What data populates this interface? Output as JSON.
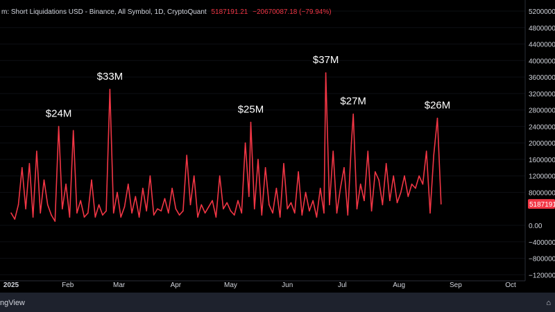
{
  "legend": {
    "title": "m: Short Liquidations USD - Binance, All Symbol, 1D, CryptoQuant",
    "value": "5187191.21",
    "change": "−20670087.18 (−79.94%)"
  },
  "branding": {
    "text": "ngView",
    "corner": "⌂"
  },
  "colors": {
    "background": "#000000",
    "line": "#f23645",
    "axis_text": "#d1d4dc",
    "grid": "#2a2e39",
    "footer": "#1e222d"
  },
  "chart_data": {
    "type": "line",
    "title": "",
    "xlabel": "",
    "ylabel": "",
    "ylim": [
      -12000000,
      52000000
    ],
    "x_start": "2025-01-01",
    "x_end": "2025-10-08",
    "y_ticks": [
      {
        "value": 52000000,
        "label": "52000000"
      },
      {
        "value": 48000000,
        "label": "48000000"
      },
      {
        "value": 44000000,
        "label": "44000000"
      },
      {
        "value": 40000000,
        "label": "40000000"
      },
      {
        "value": 36000000,
        "label": "36000000"
      },
      {
        "value": 32000000,
        "label": "32000000"
      },
      {
        "value": 28000000,
        "label": "28000000"
      },
      {
        "value": 24000000,
        "label": "24000000"
      },
      {
        "value": 20000000,
        "label": "20000000"
      },
      {
        "value": 16000000,
        "label": "16000000"
      },
      {
        "value": 12000000,
        "label": "12000000"
      },
      {
        "value": 8000000,
        "label": "8000000"
      },
      {
        "value": 0,
        "label": "0.00"
      },
      {
        "value": -4000000,
        "label": "−4000000"
      },
      {
        "value": -8000000,
        "label": "−8000000"
      },
      {
        "value": -12000000,
        "label": "−12000000"
      }
    ],
    "x_ticks": [
      {
        "date": "2025-01-01",
        "label": "2025"
      },
      {
        "date": "2025-02-01",
        "label": "Feb"
      },
      {
        "date": "2025-03-01",
        "label": "Mar"
      },
      {
        "date": "2025-04-01",
        "label": "Apr"
      },
      {
        "date": "2025-05-01",
        "label": "May"
      },
      {
        "date": "2025-06-01",
        "label": "Jun"
      },
      {
        "date": "2025-07-01",
        "label": "Jul"
      },
      {
        "date": "2025-08-01",
        "label": "Aug"
      },
      {
        "date": "2025-09-01",
        "label": "Sep"
      },
      {
        "date": "2025-10-01",
        "label": "Oct"
      }
    ],
    "last_value": {
      "value": 5187191,
      "label": "5187191"
    },
    "annotations": [
      {
        "date": "2025-01-27",
        "value": 24000000,
        "label": "$24M"
      },
      {
        "date": "2025-02-24",
        "value": 33000000,
        "label": "$33M"
      },
      {
        "date": "2025-05-12",
        "value": 25000000,
        "label": "$25M"
      },
      {
        "date": "2025-06-22",
        "value": 37000000,
        "label": "$37M"
      },
      {
        "date": "2025-07-07",
        "value": 27000000,
        "label": "$27M"
      },
      {
        "date": "2025-08-22",
        "value": 26000000,
        "label": "$26M"
      }
    ],
    "series": [
      {
        "name": "Short Liquidations USD",
        "x": [
          "2025-01-01",
          "2025-01-03",
          "2025-01-05",
          "2025-01-07",
          "2025-01-09",
          "2025-01-11",
          "2025-01-13",
          "2025-01-15",
          "2025-01-17",
          "2025-01-19",
          "2025-01-21",
          "2025-01-23",
          "2025-01-25",
          "2025-01-27",
          "2025-01-29",
          "2025-01-31",
          "2025-02-02",
          "2025-02-04",
          "2025-02-06",
          "2025-02-08",
          "2025-02-10",
          "2025-02-12",
          "2025-02-14",
          "2025-02-16",
          "2025-02-18",
          "2025-02-20",
          "2025-02-22",
          "2025-02-24",
          "2025-02-26",
          "2025-02-28",
          "2025-03-02",
          "2025-03-04",
          "2025-03-06",
          "2025-03-08",
          "2025-03-10",
          "2025-03-12",
          "2025-03-14",
          "2025-03-16",
          "2025-03-18",
          "2025-03-20",
          "2025-03-22",
          "2025-03-24",
          "2025-03-26",
          "2025-03-28",
          "2025-03-30",
          "2025-04-01",
          "2025-04-03",
          "2025-04-05",
          "2025-04-07",
          "2025-04-09",
          "2025-04-11",
          "2025-04-13",
          "2025-04-15",
          "2025-04-17",
          "2025-04-19",
          "2025-04-21",
          "2025-04-23",
          "2025-04-25",
          "2025-04-27",
          "2025-04-29",
          "2025-05-01",
          "2025-05-03",
          "2025-05-05",
          "2025-05-07",
          "2025-05-09",
          "2025-05-11",
          "2025-05-12",
          "2025-05-14",
          "2025-05-16",
          "2025-05-18",
          "2025-05-20",
          "2025-05-22",
          "2025-05-24",
          "2025-05-26",
          "2025-05-28",
          "2025-05-30",
          "2025-06-01",
          "2025-06-03",
          "2025-06-05",
          "2025-06-07",
          "2025-06-09",
          "2025-06-11",
          "2025-06-13",
          "2025-06-15",
          "2025-06-17",
          "2025-06-19",
          "2025-06-21",
          "2025-06-22",
          "2025-06-24",
          "2025-06-26",
          "2025-06-28",
          "2025-06-30",
          "2025-07-02",
          "2025-07-04",
          "2025-07-06",
          "2025-07-07",
          "2025-07-09",
          "2025-07-11",
          "2025-07-13",
          "2025-07-15",
          "2025-07-17",
          "2025-07-19",
          "2025-07-21",
          "2025-07-23",
          "2025-07-25",
          "2025-07-27",
          "2025-07-29",
          "2025-07-31",
          "2025-08-02",
          "2025-08-04",
          "2025-08-06",
          "2025-08-08",
          "2025-08-10",
          "2025-08-12",
          "2025-08-14",
          "2025-08-16",
          "2025-08-18",
          "2025-08-20",
          "2025-08-22",
          "2025-08-24"
        ],
        "values": [
          3000000,
          1500000,
          5000000,
          14000000,
          4000000,
          15000000,
          2000000,
          18000000,
          3000000,
          11000000,
          5000000,
          2500000,
          1000000,
          24000000,
          4000000,
          10000000,
          2000000,
          23000000,
          3000000,
          6000000,
          2000000,
          3000000,
          11000000,
          2000000,
          5000000,
          2500000,
          3500000,
          33000000,
          3000000,
          8000000,
          2000000,
          4500000,
          10000000,
          3000000,
          7000000,
          2000000,
          9000000,
          3500000,
          12000000,
          2500000,
          4000000,
          3500000,
          6500000,
          3000000,
          9000000,
          4000000,
          2500000,
          3500000,
          17000000,
          5000000,
          12000000,
          2000000,
          5000000,
          3000000,
          4500000,
          6000000,
          2000000,
          12000000,
          4000000,
          5500000,
          3500000,
          2500000,
          6000000,
          3000000,
          20000000,
          7000000,
          25000000,
          4000000,
          16000000,
          2500000,
          14000000,
          5000000,
          3000000,
          9000000,
          2000000,
          15000000,
          4000000,
          5500000,
          3000000,
          13000000,
          2500000,
          8000000,
          3500000,
          6000000,
          2000000,
          9000000,
          3000000,
          37000000,
          5000000,
          18000000,
          3000000,
          9000000,
          14000000,
          2500000,
          20000000,
          27000000,
          4000000,
          10000000,
          6000000,
          18000000,
          3500000,
          13000000,
          11000000,
          5000000,
          15000000,
          6000000,
          12000000,
          5500000,
          8000000,
          12000000,
          7000000,
          10000000,
          9000000,
          12000000,
          10000000,
          18000000,
          3000000,
          17000000,
          26000000,
          5187191
        ]
      }
    ]
  }
}
